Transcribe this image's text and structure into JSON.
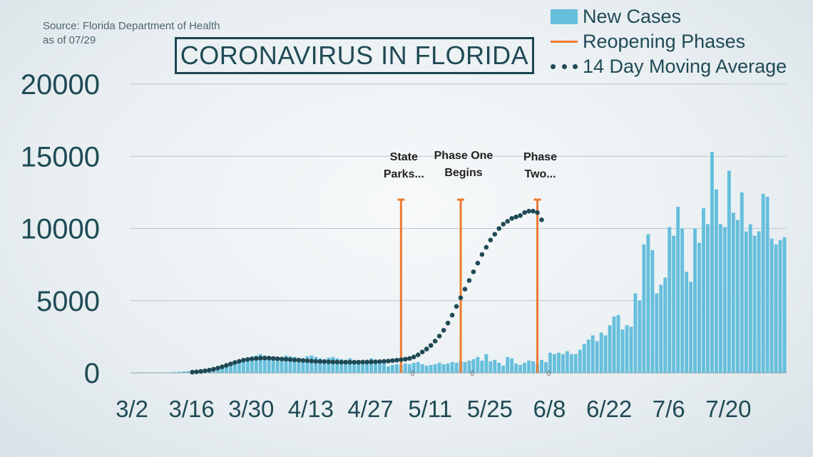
{
  "source": {
    "line1": "Source: Florida Department of Health",
    "line2": "as of 07/29"
  },
  "title": "CORONAVIRUS IN FLORIDA",
  "legend": {
    "items": [
      {
        "label": "New Cases",
        "type": "bar"
      },
      {
        "label": "Reopening Phases",
        "type": "line"
      },
      {
        "label": "14 Day Moving Average",
        "type": "dots"
      }
    ],
    "position": "top-right"
  },
  "colors": {
    "bars": "#66bfdc",
    "phases": "#ee7b30",
    "average": "#1f4a55",
    "text": "#1f4a55",
    "grid": "#b9c7ce"
  },
  "chart_data": {
    "type": "bar",
    "title": "CORONAVIRUS IN FLORIDA",
    "xlabel": "",
    "ylabel": "",
    "ylim": [
      0,
      20000
    ],
    "yticks": [
      0,
      5000,
      10000,
      15000,
      20000
    ],
    "grid": true,
    "x_tick_labels": [
      "3/2",
      "3/16",
      "3/30",
      "4/13",
      "4/27",
      "5/11",
      "5/25",
      "6/8",
      "6/22",
      "7/6",
      "7/20"
    ],
    "x_tick_day_index": [
      0,
      14,
      28,
      42,
      56,
      70,
      84,
      98,
      112,
      126,
      140
    ],
    "series": [
      {
        "name": "New Cases",
        "type": "bar",
        "start": "3/2",
        "values": [
          0,
          0,
          0,
          2,
          5,
          8,
          12,
          20,
          25,
          35,
          50,
          70,
          100,
          120,
          150,
          190,
          230,
          280,
          330,
          390,
          450,
          520,
          600,
          690,
          760,
          830,
          900,
          950,
          1000,
          1200,
          1300,
          1200,
          1100,
          1050,
          1000,
          1100,
          1200,
          1150,
          1100,
          1050,
          1000,
          1150,
          1200,
          1100,
          1000,
          950,
          1050,
          1100,
          1000,
          950,
          900,
          1000,
          800,
          750,
          750,
          900,
          1000,
          850,
          700,
          650,
          450,
          550,
          600,
          550,
          650,
          600,
          700,
          750,
          600,
          500,
          550,
          600,
          700,
          600,
          650,
          750,
          700,
          800,
          750,
          850,
          950,
          1100,
          850,
          1300,
          800,
          900,
          700,
          500,
          1100,
          1000,
          650,
          550,
          700,
          850,
          800,
          650,
          900,
          750,
          1400,
          1300,
          1400,
          1300,
          1500,
          1300,
          1300,
          1600,
          2000,
          2300,
          2600,
          2200,
          2800,
          2600,
          3300,
          3900,
          4000,
          3000,
          3300,
          3200,
          5500,
          5000,
          8900,
          9600,
          8500,
          5500,
          6100,
          6600,
          10100,
          9500,
          11500,
          10000,
          7000,
          6300,
          10000,
          9000,
          11400,
          10300,
          15300,
          12700,
          10300,
          10100,
          14000,
          11100,
          10600,
          12500,
          9800,
          10300,
          9500,
          9800,
          12400,
          12200,
          9300,
          8900,
          9200,
          9400
        ]
      },
      {
        "name": "14 Day Moving Average",
        "type": "dots",
        "start": "3/16",
        "values": [
          50,
          70,
          100,
          140,
          190,
          250,
          330,
          420,
          520,
          620,
          720,
          800,
          880,
          930,
          980,
          1000,
          1020,
          1020,
          1020,
          1000,
          980,
          960,
          940,
          920,
          900,
          880,
          860,
          840,
          820,
          800,
          790,
          780,
          770,
          760,
          750,
          740,
          740,
          740,
          740,
          740,
          750,
          750,
          760,
          770,
          780,
          800,
          820,
          850,
          880,
          910,
          950,
          1000,
          1100,
          1250,
          1450,
          1650,
          1900,
          2200,
          2550,
          2950,
          3450,
          4000,
          4600,
          5200,
          5800,
          6400,
          7000,
          7600,
          8200,
          8700,
          9200,
          9600,
          10000,
          10300,
          10500,
          10700,
          10800,
          10900,
          11100,
          11200,
          11200,
          11100,
          10600
        ]
      }
    ],
    "phases": [
      {
        "label": "State Parks...",
        "date": "5/4",
        "value": 12000
      },
      {
        "label": "Phase One Begins",
        "date": "5/18",
        "value": 12000
      },
      {
        "label": "Phase Two...",
        "date": "6/5",
        "value": 12000
      }
    ],
    "zero_labels": [
      "0",
      "0",
      "0"
    ]
  }
}
